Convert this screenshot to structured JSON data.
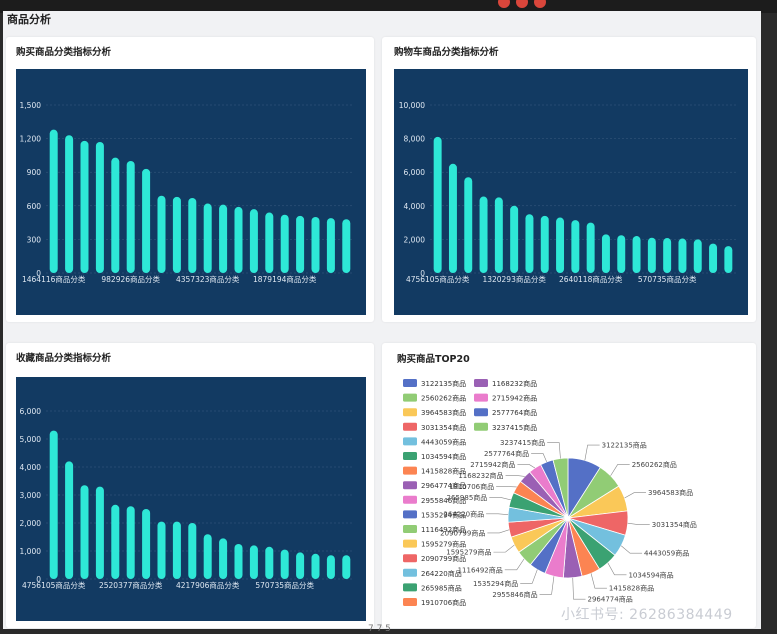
{
  "section_title": "商品分析",
  "watermark": "小红书号: 26286384449",
  "bottom_mark": "7 7 5",
  "colors": {
    "chart_bg": "#123a62",
    "bar": "#2ee8d7",
    "grid": "#3a5c80",
    "axis_text": "#dfe8f2"
  },
  "chart_data": [
    {
      "id": "buy",
      "type": "bar",
      "title": "购买商品分类指标分析",
      "ylim": [
        0,
        1500
      ],
      "yticks": [
        0,
        300,
        600,
        900,
        1200,
        1500
      ],
      "ytick_labels": [
        "0",
        "300",
        "600",
        "900",
        "1,200",
        "1,500"
      ],
      "values": [
        1280,
        1230,
        1180,
        1170,
        1030,
        1000,
        930,
        690,
        680,
        670,
        620,
        610,
        590,
        570,
        540,
        520,
        510,
        500,
        490,
        480
      ],
      "visible_xlabels": [
        {
          "index": 0,
          "text": "1464116商品分类"
        },
        {
          "index": 5,
          "text": "982926商品分类"
        },
        {
          "index": 10,
          "text": "4357323商品分类"
        },
        {
          "index": 15,
          "text": "1879194商品分类"
        }
      ]
    },
    {
      "id": "cart",
      "type": "bar",
      "title": "购物车商品分类指标分析",
      "ylim": [
        0,
        10000
      ],
      "yticks": [
        0,
        2000,
        4000,
        6000,
        8000,
        10000
      ],
      "ytick_labels": [
        "0",
        "2,000",
        "4,000",
        "6,000",
        "8,000",
        "10,000"
      ],
      "values": [
        8100,
        6500,
        5700,
        4550,
        4500,
        4000,
        3500,
        3400,
        3300,
        3150,
        3000,
        2300,
        2250,
        2200,
        2100,
        2080,
        2050,
        2000,
        1750,
        1600
      ],
      "visible_xlabels": [
        {
          "index": 0,
          "text": "4756105商品分类"
        },
        {
          "index": 5,
          "text": "1320293商品分类"
        },
        {
          "index": 10,
          "text": "2640118商品分类"
        },
        {
          "index": 15,
          "text": "570735商品分类"
        }
      ]
    },
    {
      "id": "fav",
      "type": "bar",
      "title": "收藏商品分类指标分析",
      "ylim": [
        0,
        6000
      ],
      "yticks": [
        0,
        1000,
        2000,
        3000,
        4000,
        5000,
        6000
      ],
      "ytick_labels": [
        "0",
        "1,000",
        "2,000",
        "3,000",
        "4,000",
        "5,000",
        "6,000"
      ],
      "values": [
        5300,
        4200,
        3350,
        3300,
        2650,
        2600,
        2500,
        2050,
        2050,
        2000,
        1600,
        1450,
        1250,
        1200,
        1150,
        1050,
        950,
        900,
        850,
        850
      ],
      "visible_xlabels": [
        {
          "index": 0,
          "text": "4756105商品分类"
        },
        {
          "index": 5,
          "text": "2520377商品分类"
        },
        {
          "index": 10,
          "text": "4217906商品分类"
        },
        {
          "index": 15,
          "text": "570735商品分类"
        }
      ]
    },
    {
      "id": "top20",
      "type": "pie",
      "title": "购买商品TOP20",
      "legend_col1": [
        {
          "name": "3122135商品",
          "color": "#5470c6"
        },
        {
          "name": "2560262商品",
          "color": "#91cc75"
        },
        {
          "name": "3964583商品",
          "color": "#fac858"
        },
        {
          "name": "3031354商品",
          "color": "#ee6666"
        },
        {
          "name": "4443059商品",
          "color": "#73c0de"
        },
        {
          "name": "1034594商品",
          "color": "#3ba272"
        },
        {
          "name": "1415828商品",
          "color": "#fc8452"
        },
        {
          "name": "2964774商品",
          "color": "#9a60b4"
        },
        {
          "name": "2955846商品",
          "color": "#ea7ccc"
        },
        {
          "name": "1535294商品",
          "color": "#5470c6"
        },
        {
          "name": "1116492商品",
          "color": "#91cc75"
        },
        {
          "name": "1595279商品",
          "color": "#fac858"
        },
        {
          "name": "2090799商品",
          "color": "#ee6666"
        },
        {
          "name": "264220商品",
          "color": "#73c0de"
        },
        {
          "name": "265985商品",
          "color": "#3ba272"
        },
        {
          "name": "1910706商品",
          "color": "#fc8452"
        }
      ],
      "legend_col2": [
        {
          "name": "1168232商品",
          "color": "#9a60b4"
        },
        {
          "name": "2715942商品",
          "color": "#ea7ccc"
        },
        {
          "name": "2577764商品",
          "color": "#5470c6"
        },
        {
          "name": "3237415商品",
          "color": "#91cc75"
        }
      ],
      "slices": [
        {
          "name": "3122135商品",
          "value": 9,
          "color": "#5470c6",
          "label": "3122135商品",
          "side": "right"
        },
        {
          "name": "2560262商品",
          "value": 7,
          "color": "#91cc75",
          "label": "2560262商品",
          "side": "right"
        },
        {
          "name": "3964583商品",
          "value": 7,
          "color": "#fac858",
          "label": "3964583商品",
          "side": "right"
        },
        {
          "name": "3031354商品",
          "value": 6.5,
          "color": "#ee6666",
          "label": "3031354商品",
          "side": "right"
        },
        {
          "name": "4443059商品",
          "value": 6,
          "color": "#73c0de",
          "label": "4443059商品",
          "side": "right"
        },
        {
          "name": "1034594商品",
          "value": 5.5,
          "color": "#3ba272",
          "label": "1034594商品",
          "side": "right"
        },
        {
          "name": "1415828商品",
          "value": 5,
          "color": "#fc8452",
          "label": "1415828商品",
          "side": "right"
        },
        {
          "name": "2964774商品",
          "value": 5,
          "color": "#9a60b4",
          "label": "2964774商品",
          "side": "right"
        },
        {
          "name": "2955846商品",
          "value": 5,
          "color": "#ea7ccc",
          "label": "2955846商品",
          "side": "left"
        },
        {
          "name": "1535294商品",
          "value": 4.5,
          "color": "#5470c6",
          "label": "1535294商品",
          "side": "left"
        },
        {
          "name": "1116492商品",
          "value": 4.5,
          "color": "#91cc75",
          "label": "1116492商品",
          "side": "left"
        },
        {
          "name": "1595279商品",
          "value": 4.5,
          "color": "#fac858",
          "label": "1595279商品",
          "side": "left"
        },
        {
          "name": "2090799商品",
          "value": 4,
          "color": "#ee6666",
          "label": "2090799商品",
          "side": "left"
        },
        {
          "name": "264220商品",
          "value": 4,
          "color": "#73c0de",
          "label": "264220商品",
          "side": "left"
        },
        {
          "name": "265985商品",
          "value": 4,
          "color": "#3ba272",
          "label": "265985商品",
          "side": "left"
        },
        {
          "name": "1910706商品",
          "value": 3.5,
          "color": "#fc8452",
          "label": "1910706商品",
          "side": "left"
        },
        {
          "name": "1168232商品",
          "value": 3.5,
          "color": "#9a60b4",
          "label": "1168232商品",
          "side": "left"
        },
        {
          "name": "2715942商品",
          "value": 3.5,
          "color": "#ea7ccc",
          "label": "2715942商品",
          "side": "left"
        },
        {
          "name": "2577764商品",
          "value": 3.5,
          "color": "#5470c6",
          "label": "2577764商品",
          "side": "left"
        },
        {
          "name": "3237415商品",
          "value": 4,
          "color": "#91cc75",
          "label": "3237415商品",
          "side": "left"
        }
      ]
    }
  ]
}
